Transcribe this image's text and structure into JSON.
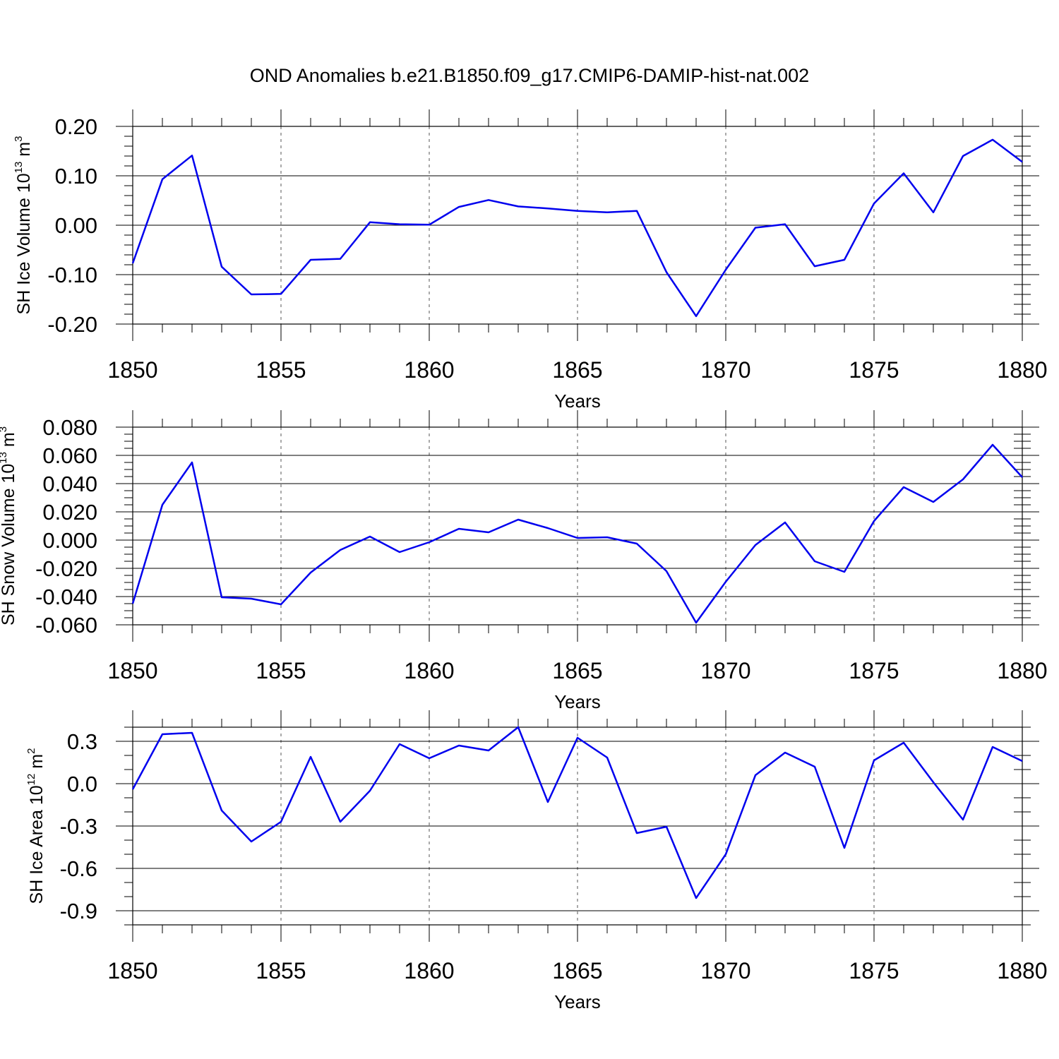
{
  "figure_title": "OND Anomalies b.e21.B1850.f09_g17.CMIP6-DAMIP-hist-nat.002",
  "line_color": "#0000ee",
  "chart_data": [
    {
      "type": "line",
      "ylabel": "SH Ice Volume 10",
      "ylabel_sup": "13",
      "ylabel_unit": " m",
      "ylabel_unit_sup": "3",
      "xlabel": "Years",
      "xlim": [
        1850,
        1880
      ],
      "ylim": [
        -0.2,
        0.2
      ],
      "xticks": [
        1850,
        1855,
        1860,
        1865,
        1870,
        1875,
        1880
      ],
      "xtick_labels": [
        "1850",
        "1855",
        "1860",
        "1865",
        "1870",
        "1875",
        "1880"
      ],
      "yticks": [
        -0.2,
        -0.1,
        0.0,
        0.1,
        0.2
      ],
      "ytick_labels": [
        "-0.20",
        "-0.10",
        "0.00",
        "0.10",
        "0.20"
      ],
      "y_minor_step": 0.02,
      "grid_x": "dashed",
      "x": [
        1850,
        1851,
        1852,
        1853,
        1854,
        1855,
        1856,
        1857,
        1858,
        1859,
        1860,
        1861,
        1862,
        1863,
        1864,
        1865,
        1866,
        1867,
        1868,
        1869,
        1870,
        1871,
        1872,
        1873,
        1874,
        1875,
        1876,
        1877,
        1878,
        1879,
        1880
      ],
      "values": [
        -0.077,
        0.093,
        0.141,
        -0.084,
        -0.14,
        -0.139,
        -0.07,
        -0.068,
        0.006,
        0.002,
        0.001,
        0.037,
        0.051,
        0.038,
        0.034,
        0.029,
        0.026,
        0.029,
        -0.095,
        -0.184,
        -0.09,
        -0.005,
        0.002,
        -0.083,
        -0.07,
        0.044,
        0.105,
        0.026,
        0.14,
        0.173,
        0.128
      ]
    },
    {
      "type": "line",
      "ylabel": "SH Snow Volume 10",
      "ylabel_sup": "13",
      "ylabel_unit": " m",
      "ylabel_unit_sup": "3",
      "xlabel": "Years",
      "xlim": [
        1850,
        1880
      ],
      "ylim": [
        -0.06,
        0.08
      ],
      "xticks": [
        1850,
        1855,
        1860,
        1865,
        1870,
        1875,
        1880
      ],
      "xtick_labels": [
        "1850",
        "1855",
        "1860",
        "1865",
        "1870",
        "1875",
        "1880"
      ],
      "yticks": [
        -0.06,
        -0.04,
        -0.02,
        0.0,
        0.02,
        0.04,
        0.06,
        0.08
      ],
      "ytick_labels": [
        "-0.060",
        "-0.040",
        "-0.020",
        "0.000",
        "0.020",
        "0.040",
        "0.060",
        "0.080"
      ],
      "y_minor_step": 0.005,
      "grid_x": "dashed",
      "x": [
        1850,
        1851,
        1852,
        1853,
        1854,
        1855,
        1856,
        1857,
        1858,
        1859,
        1860,
        1861,
        1862,
        1863,
        1864,
        1865,
        1866,
        1867,
        1868,
        1869,
        1870,
        1871,
        1872,
        1873,
        1874,
        1875,
        1876,
        1877,
        1878,
        1879,
        1880
      ],
      "values": [
        -0.045,
        0.025,
        0.055,
        -0.0405,
        -0.0415,
        -0.0455,
        -0.023,
        -0.007,
        0.0025,
        -0.0085,
        -0.0015,
        0.008,
        0.0055,
        0.0145,
        0.0085,
        0.0015,
        0.002,
        -0.0025,
        -0.022,
        -0.0585,
        -0.0295,
        -0.0035,
        0.0125,
        -0.015,
        -0.0225,
        0.0135,
        0.0375,
        0.027,
        0.043,
        0.0675,
        0.0445
      ]
    },
    {
      "type": "line",
      "ylabel": "SH Ice Area 10",
      "ylabel_sup": "12",
      "ylabel_unit": " m",
      "ylabel_unit_sup": "2",
      "xlabel": "Years",
      "xlim": [
        1850,
        1880
      ],
      "ylim": [
        -1.0,
        0.4
      ],
      "xticks": [
        1850,
        1855,
        1860,
        1865,
        1870,
        1875,
        1880
      ],
      "xtick_labels": [
        "1850",
        "1855",
        "1860",
        "1865",
        "1870",
        "1875",
        "1880"
      ],
      "yticks": [
        -0.9,
        -0.6,
        -0.3,
        0.0,
        0.3
      ],
      "ytick_labels": [
        "-0.9",
        "-0.6",
        "-0.3",
        "0.0",
        "0.3"
      ],
      "y_minor_step": 0.1,
      "grid_x": "dashed",
      "x": [
        1850,
        1851,
        1852,
        1853,
        1854,
        1855,
        1856,
        1857,
        1858,
        1859,
        1860,
        1861,
        1862,
        1863,
        1864,
        1865,
        1866,
        1867,
        1868,
        1869,
        1870,
        1871,
        1872,
        1873,
        1874,
        1875,
        1876,
        1877,
        1878,
        1879,
        1880
      ],
      "values": [
        -0.04,
        0.35,
        0.36,
        -0.19,
        -0.41,
        -0.27,
        0.19,
        -0.27,
        -0.05,
        0.28,
        0.18,
        0.27,
        0.235,
        0.4,
        -0.13,
        0.325,
        0.185,
        -0.35,
        -0.305,
        -0.81,
        -0.5,
        0.06,
        0.22,
        0.12,
        -0.455,
        0.165,
        0.29,
        0.01,
        -0.255,
        0.26,
        0.16
      ]
    }
  ]
}
